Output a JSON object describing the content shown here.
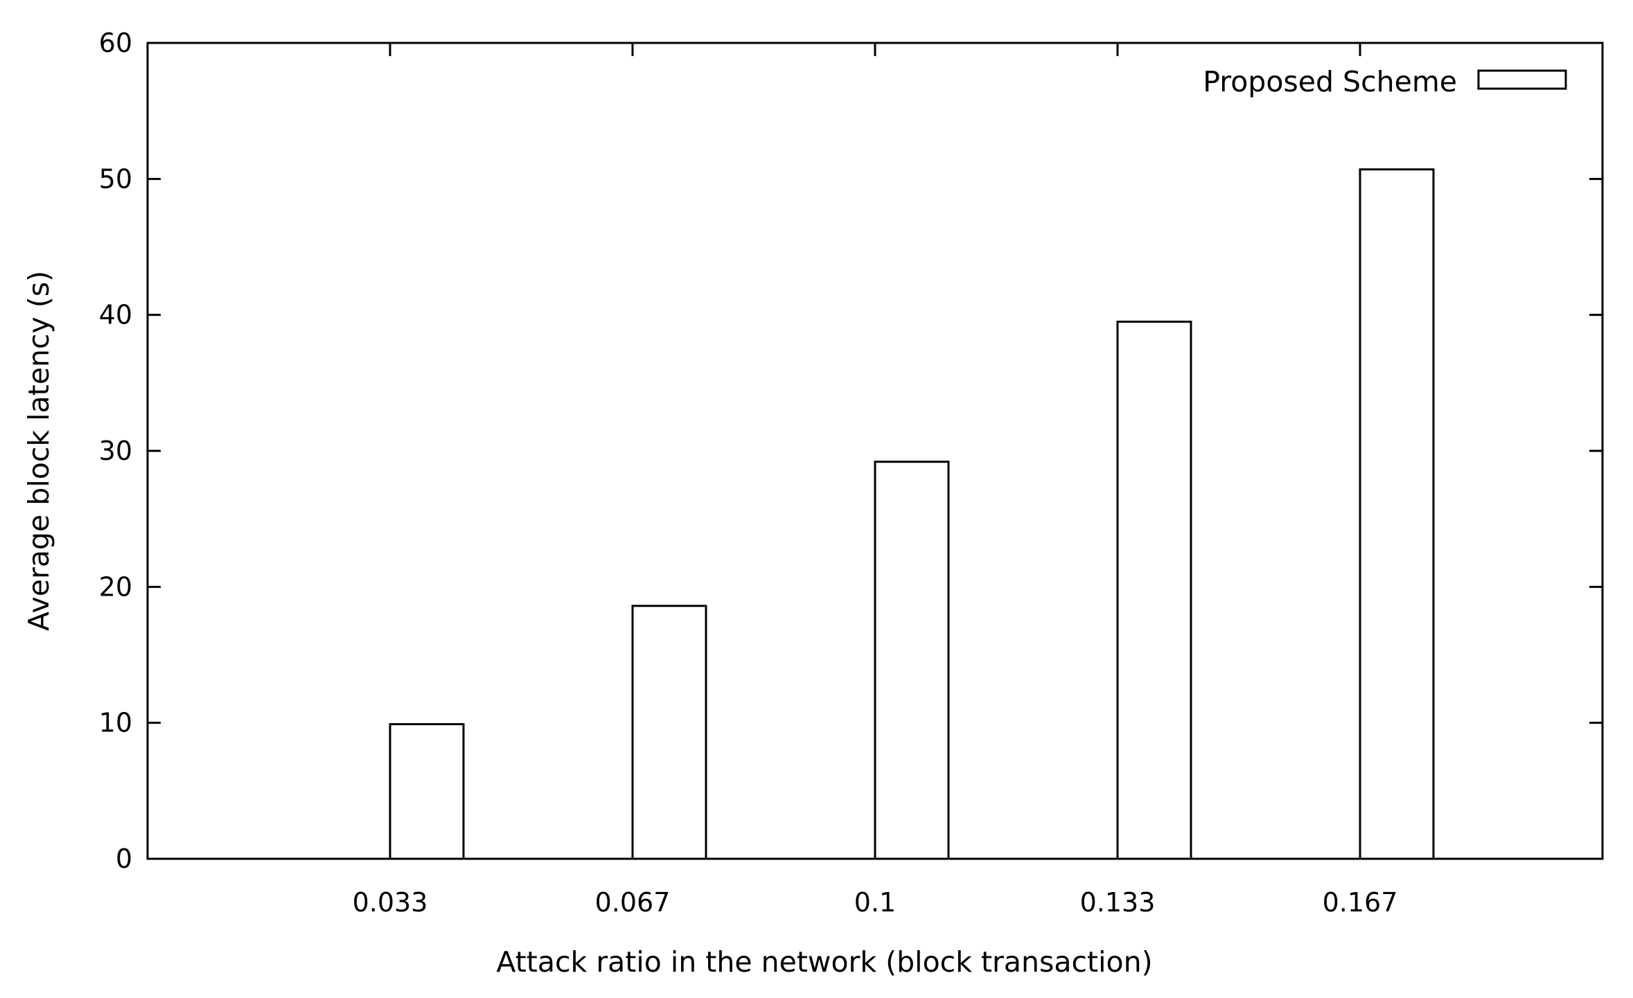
{
  "chart_data": {
    "type": "bar",
    "title": "",
    "xlabel": "Attack ratio in the network (block transaction)",
    "ylabel": "Average block latency (s)",
    "categories": [
      "0.033",
      "0.067",
      "0.1",
      "0.133",
      "0.167"
    ],
    "series": [
      {
        "name": "Proposed Scheme",
        "values": [
          9.9,
          18.6,
          29.2,
          39.5,
          50.7
        ]
      }
    ],
    "ylim": [
      0,
      60
    ],
    "yticks": [
      "0",
      "10",
      "20",
      "30",
      "40",
      "50",
      "60"
    ],
    "grid": false,
    "legend_position": "top-right",
    "colors": {
      "bar_fill": "#ffffff",
      "bar_stroke": "#000000",
      "axis": "#000000"
    }
  }
}
